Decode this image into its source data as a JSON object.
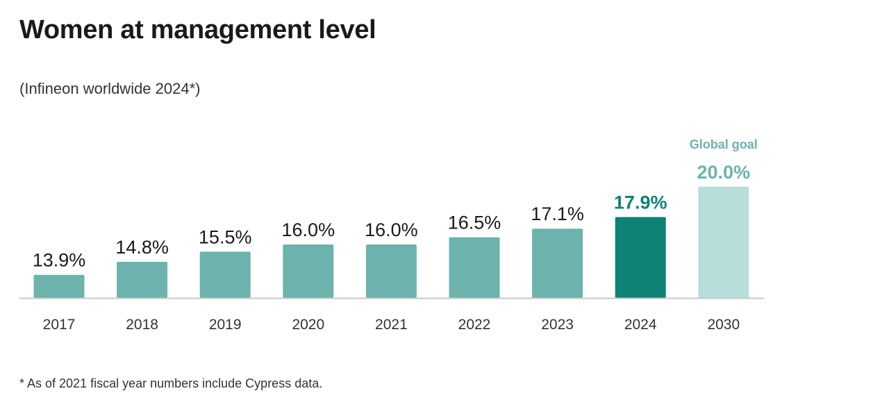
{
  "title": "Women at management level",
  "subtitle": "(Infineon worldwide 2024*)",
  "footnote": "* As of 2021 fiscal year numbers include Cypress data.",
  "colors": {
    "bar": "#6cb3ad",
    "highlight": "#0d8275",
    "goal": "#b7dedb",
    "goal_text": "#6cb3ad",
    "axis": "#c8c8c8",
    "text": "#1a1a1a"
  },
  "chart_data": {
    "type": "bar",
    "title": "Women at management level",
    "subtitle": "(Infineon worldwide 2024*)",
    "xlabel": "",
    "ylabel": "",
    "ylim": [
      0,
      20
    ],
    "grid": false,
    "categories": [
      "2017",
      "2018",
      "2019",
      "2020",
      "2021",
      "2022",
      "2023",
      "2024",
      "2030"
    ],
    "values": [
      13.9,
      14.8,
      15.5,
      16.0,
      16.0,
      16.5,
      17.1,
      17.9,
      20.0
    ],
    "value_labels": [
      "13.9%",
      "14.8%",
      "15.5%",
      "16.0%",
      "16.0%",
      "16.5%",
      "17.1%",
      "17.9%",
      "20.0%"
    ],
    "bar_styles": [
      "normal",
      "normal",
      "normal",
      "normal",
      "normal",
      "normal",
      "normal",
      "highlight",
      "goal"
    ],
    "annotations": [
      {
        "category": "2030",
        "text": "Global goal"
      }
    ]
  }
}
